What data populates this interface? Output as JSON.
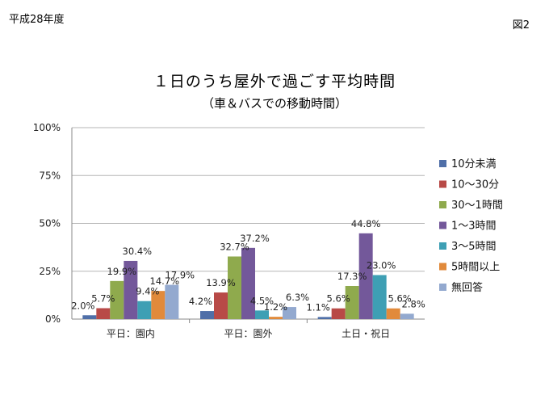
{
  "header": {
    "left_label": "平成28年度",
    "right_label": "図2"
  },
  "chart_data": {
    "type": "bar",
    "title": "１日のうち屋外で過ごす平均時間",
    "subtitle": "（車＆バスでの移動時間）",
    "categories": [
      "平日：園内",
      "平日：園外",
      "土日・祝日"
    ],
    "y_ticks": [
      "0%",
      "25%",
      "50%",
      "75%",
      "100%"
    ],
    "ylim": [
      0,
      100
    ],
    "grid": true,
    "legend_position": "right",
    "series": [
      {
        "name": "10分未満",
        "color": "#4f6fa8",
        "values": [
          2.0,
          4.2,
          1.1
        ],
        "labels": [
          "2.0%",
          "4.2%",
          "1.1%"
        ]
      },
      {
        "name": "10～30分",
        "color": "#b84a47",
        "values": [
          5.7,
          13.9,
          5.6
        ],
        "labels": [
          "5.7%",
          "13.9%",
          "5.6%"
        ]
      },
      {
        "name": "30～1時間",
        "color": "#8faa4d",
        "values": [
          19.9,
          32.7,
          17.3
        ],
        "labels": [
          "19.9%",
          "32.7%",
          "17.3%"
        ]
      },
      {
        "name": "1～3時間",
        "color": "#73589a",
        "values": [
          30.4,
          37.2,
          44.8
        ],
        "labels": [
          "30.4%",
          "37.2%",
          "44.8%"
        ]
      },
      {
        "name": "3～5時間",
        "color": "#3e9fb4",
        "values": [
          9.4,
          4.5,
          23.0
        ],
        "labels": [
          "9.4%",
          "4.5%",
          "23.0%"
        ]
      },
      {
        "name": "5時間以上",
        "color": "#e18a3b",
        "values": [
          14.7,
          1.2,
          5.6
        ],
        "labels": [
          "14.7%",
          "1.2%",
          "5.6%"
        ]
      },
      {
        "name": "無回答",
        "color": "#93a9cf",
        "values": [
          17.9,
          6.3,
          2.8
        ],
        "labels": [
          "17.9%",
          "6.3%",
          "2.8%"
        ]
      }
    ]
  }
}
